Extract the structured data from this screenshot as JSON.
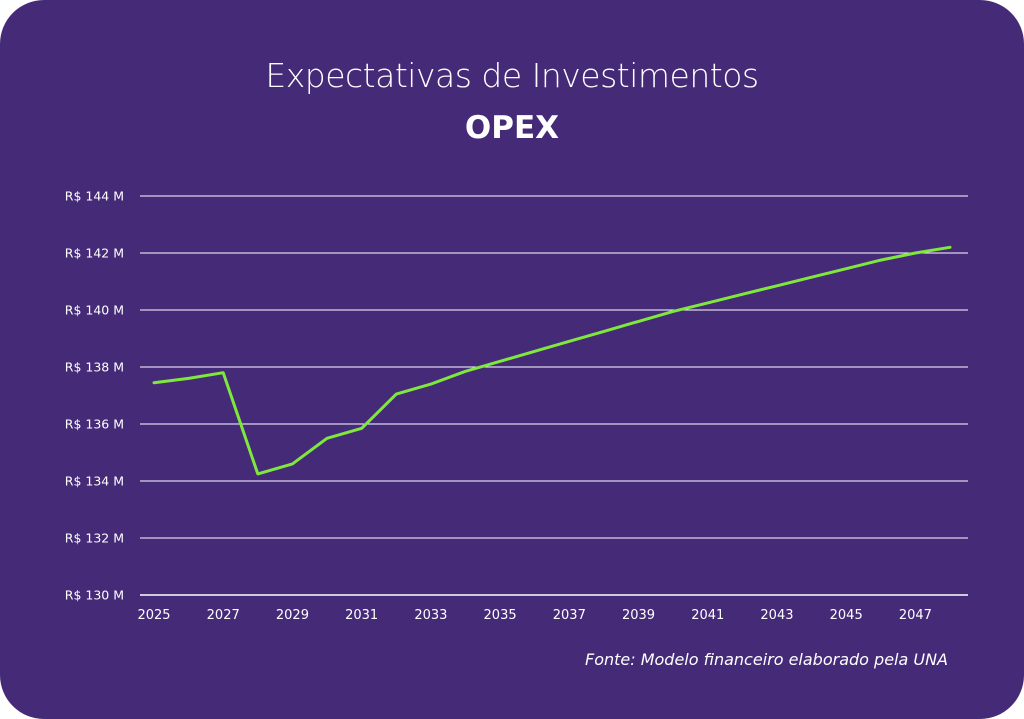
{
  "colors": {
    "background": "#452a78",
    "line": "#7ee83d",
    "grid": "#ffffff",
    "text": "#ffffff"
  },
  "chart_data": {
    "type": "line",
    "title": "Expectativas de Investimentos",
    "subtitle": "OPEX",
    "xlabel": "",
    "ylabel": "",
    "source": "Fonte: Modelo financeiro elaborado pela UNA",
    "grid": true,
    "legend": "none",
    "ylim": [
      130,
      144
    ],
    "xlim": [
      2025,
      2048
    ],
    "y_ticks": [
      130,
      132,
      134,
      136,
      138,
      140,
      142,
      144
    ],
    "y_tick_labels": [
      "R$ 130 M",
      "R$ 132 M",
      "R$ 134 M",
      "R$ 136 M",
      "R$ 138 M",
      "R$ 140 M",
      "R$ 142 M",
      "R$ 144 M"
    ],
    "x_ticks": [
      2025,
      2027,
      2029,
      2031,
      2033,
      2035,
      2037,
      2039,
      2041,
      2043,
      2045,
      2047
    ],
    "x_tick_labels": [
      "2025",
      "2027",
      "2029",
      "2031",
      "2033",
      "2035",
      "2037",
      "2039",
      "2041",
      "2043",
      "2045",
      "2047"
    ],
    "series": [
      {
        "x": [
          2025,
          2026,
          2027,
          2028,
          2029,
          2030,
          2031,
          2032,
          2033,
          2034,
          2035,
          2036,
          2037,
          2038,
          2039,
          2040,
          2041,
          2042,
          2043,
          2044,
          2045,
          2046,
          2047,
          2048
        ],
        "values": [
          137.45,
          137.6,
          137.8,
          134.25,
          134.6,
          135.5,
          135.85,
          137.05,
          137.4,
          137.85,
          138.2,
          138.55,
          138.9,
          139.25,
          139.6,
          139.95,
          140.25,
          140.55,
          140.85,
          141.15,
          141.45,
          141.75,
          142.0,
          142.2
        ]
      }
    ]
  }
}
